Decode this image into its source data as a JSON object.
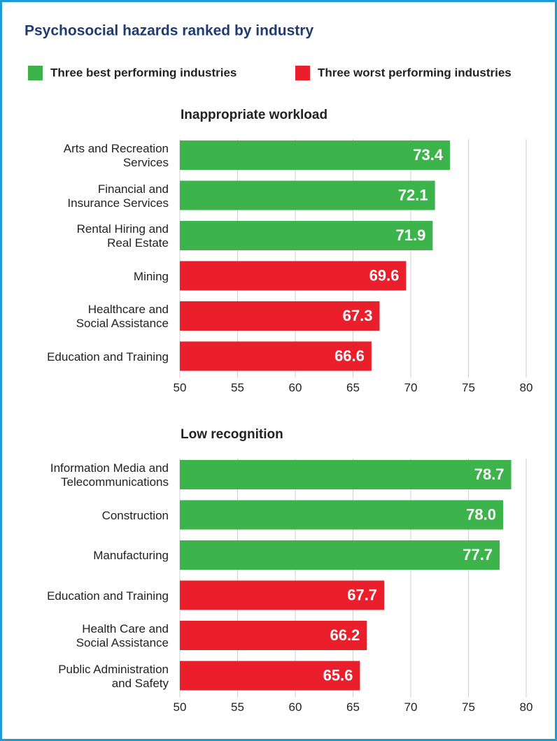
{
  "title": "Psychosocial hazards ranked by industry",
  "legend": [
    {
      "name": "Three best performing industries",
      "color": "#3cb44b"
    },
    {
      "name": "Three worst performing industries",
      "color": "#ea1f2b"
    }
  ],
  "chart_data": [
    {
      "type": "bar",
      "orientation": "horizontal",
      "title": "Inappropriate workload",
      "categories": [
        "Arts and Recreation\nServices",
        "Financial and\nInsurance Services",
        "Rental Hiring and\nReal Estate",
        "Mining",
        "Healthcare and\nSocial Assistance",
        "Education and Training"
      ],
      "values": [
        73.4,
        72.1,
        71.9,
        69.6,
        67.3,
        66.6
      ],
      "colors": [
        "#3cb44b",
        "#3cb44b",
        "#3cb44b",
        "#ea1f2b",
        "#ea1f2b",
        "#ea1f2b"
      ],
      "xlim": [
        50,
        80
      ],
      "xticks": [
        50,
        55,
        60,
        65,
        70,
        75,
        80
      ],
      "grid": true
    },
    {
      "type": "bar",
      "orientation": "horizontal",
      "title": "Low recognition",
      "categories": [
        "Information Media and\nTelecommunications",
        "Construction",
        "Manufacturing",
        "Education and Training",
        "Health Care and\nSocial Assistance",
        "Public Administration\nand Safety"
      ],
      "values": [
        78.7,
        78.0,
        77.7,
        67.7,
        66.2,
        65.6
      ],
      "value_labels": [
        "78.7",
        "78.0",
        "77.7",
        "67.7",
        "66.2",
        "65.6"
      ],
      "colors": [
        "#3cb44b",
        "#3cb44b",
        "#3cb44b",
        "#ea1f2b",
        "#ea1f2b",
        "#ea1f2b"
      ],
      "xlim": [
        50,
        80
      ],
      "xticks": [
        50,
        55,
        60,
        65,
        70,
        75,
        80
      ],
      "grid": true
    }
  ]
}
